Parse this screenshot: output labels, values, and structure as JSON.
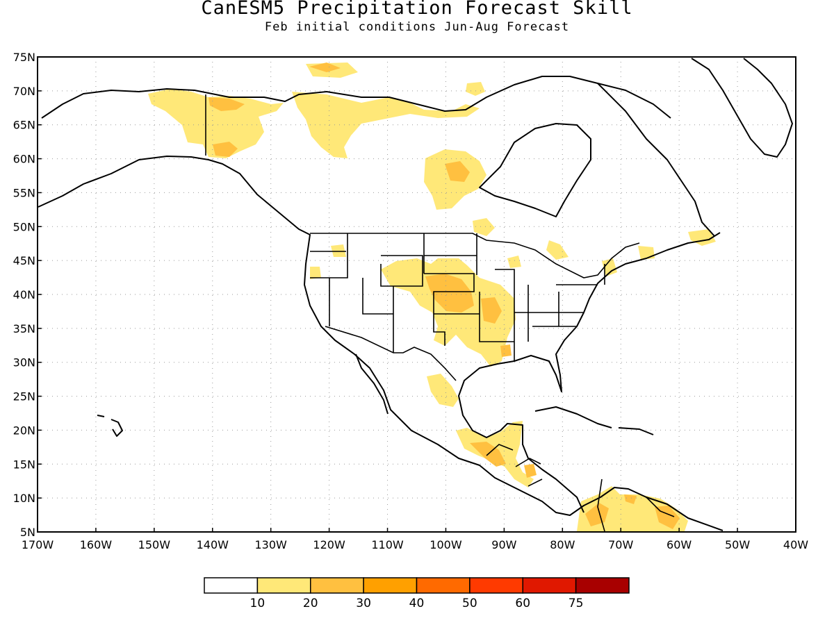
{
  "title": "CanESM5 Precipitation Forecast Skill",
  "subtitle": "Feb initial conditions  Jun-Aug Forecast",
  "map": {
    "lon_range": [
      -170,
      -40
    ],
    "lat_range": [
      5,
      75
    ],
    "gridlines": "dotted",
    "lat_ticks": [
      "5N",
      "10N",
      "15N",
      "20N",
      "25N",
      "30N",
      "35N",
      "40N",
      "45N",
      "50N",
      "55N",
      "60N",
      "65N",
      "70N",
      "75N"
    ],
    "lon_ticks": [
      "170W",
      "160W",
      "150W",
      "140W",
      "130W",
      "120W",
      "110W",
      "100W",
      "90W",
      "80W",
      "70W",
      "60W",
      "50W",
      "40W"
    ]
  },
  "colorbar": {
    "colors": [
      "#ffffff",
      "#ffe878",
      "#ffc040",
      "#ffa000",
      "#ff6a00",
      "#ff3a00",
      "#e01800",
      "#a80000"
    ],
    "labels": [
      "10",
      "20",
      "30",
      "40",
      "50",
      "60",
      "75"
    ]
  }
}
